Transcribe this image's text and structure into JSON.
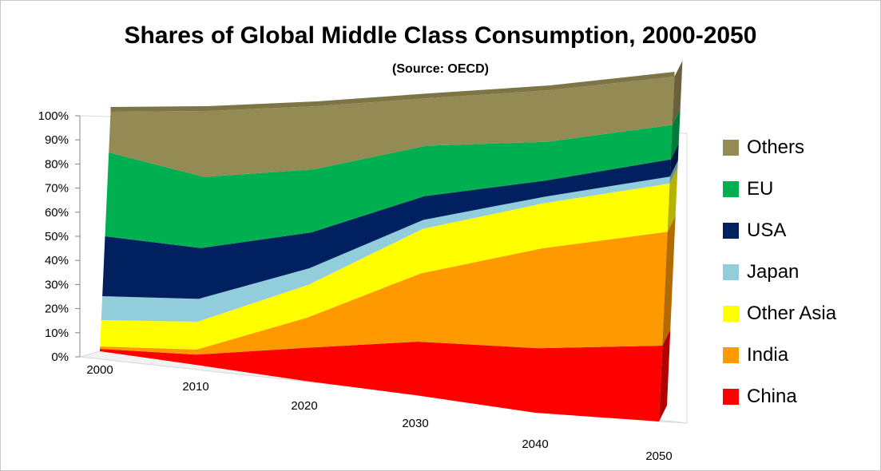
{
  "chart_data": {
    "type": "area",
    "stacked": true,
    "percent": true,
    "view": "3d",
    "title": "Shares of Global Middle Class Consumption, 2000-2050",
    "subtitle": "(Source: OECD)",
    "x": [
      "2000",
      "2010",
      "2020",
      "2030",
      "2040",
      "2050"
    ],
    "ylim": [
      0,
      100
    ],
    "yticks": [
      "0%",
      "10%",
      "20%",
      "30%",
      "40%",
      "50%",
      "60%",
      "70%",
      "80%",
      "90%",
      "100%"
    ],
    "legend_position": "right",
    "series": [
      {
        "name": "China",
        "color": "#ff0000",
        "values": [
          1,
          4,
          12,
          18,
          20,
          22
        ]
      },
      {
        "name": "India",
        "color": "#ff9900",
        "values": [
          1,
          2,
          11,
          23,
          31,
          33
        ]
      },
      {
        "name": "Other Asia",
        "color": "#ffff00",
        "values": [
          11,
          11,
          12,
          15,
          14,
          14
        ]
      },
      {
        "name": "Japan",
        "color": "#92cddc",
        "values": [
          10,
          9,
          6,
          3,
          2,
          2
        ]
      },
      {
        "name": "USA",
        "color": "#002060",
        "values": [
          25,
          20,
          13,
          8,
          5,
          5
        ]
      },
      {
        "name": "EU",
        "color": "#00b050",
        "values": [
          35,
          28,
          23,
          17,
          12,
          10
        ]
      },
      {
        "name": "Others",
        "color": "#948a54",
        "values": [
          17,
          26,
          23,
          16,
          16,
          14
        ]
      }
    ]
  }
}
